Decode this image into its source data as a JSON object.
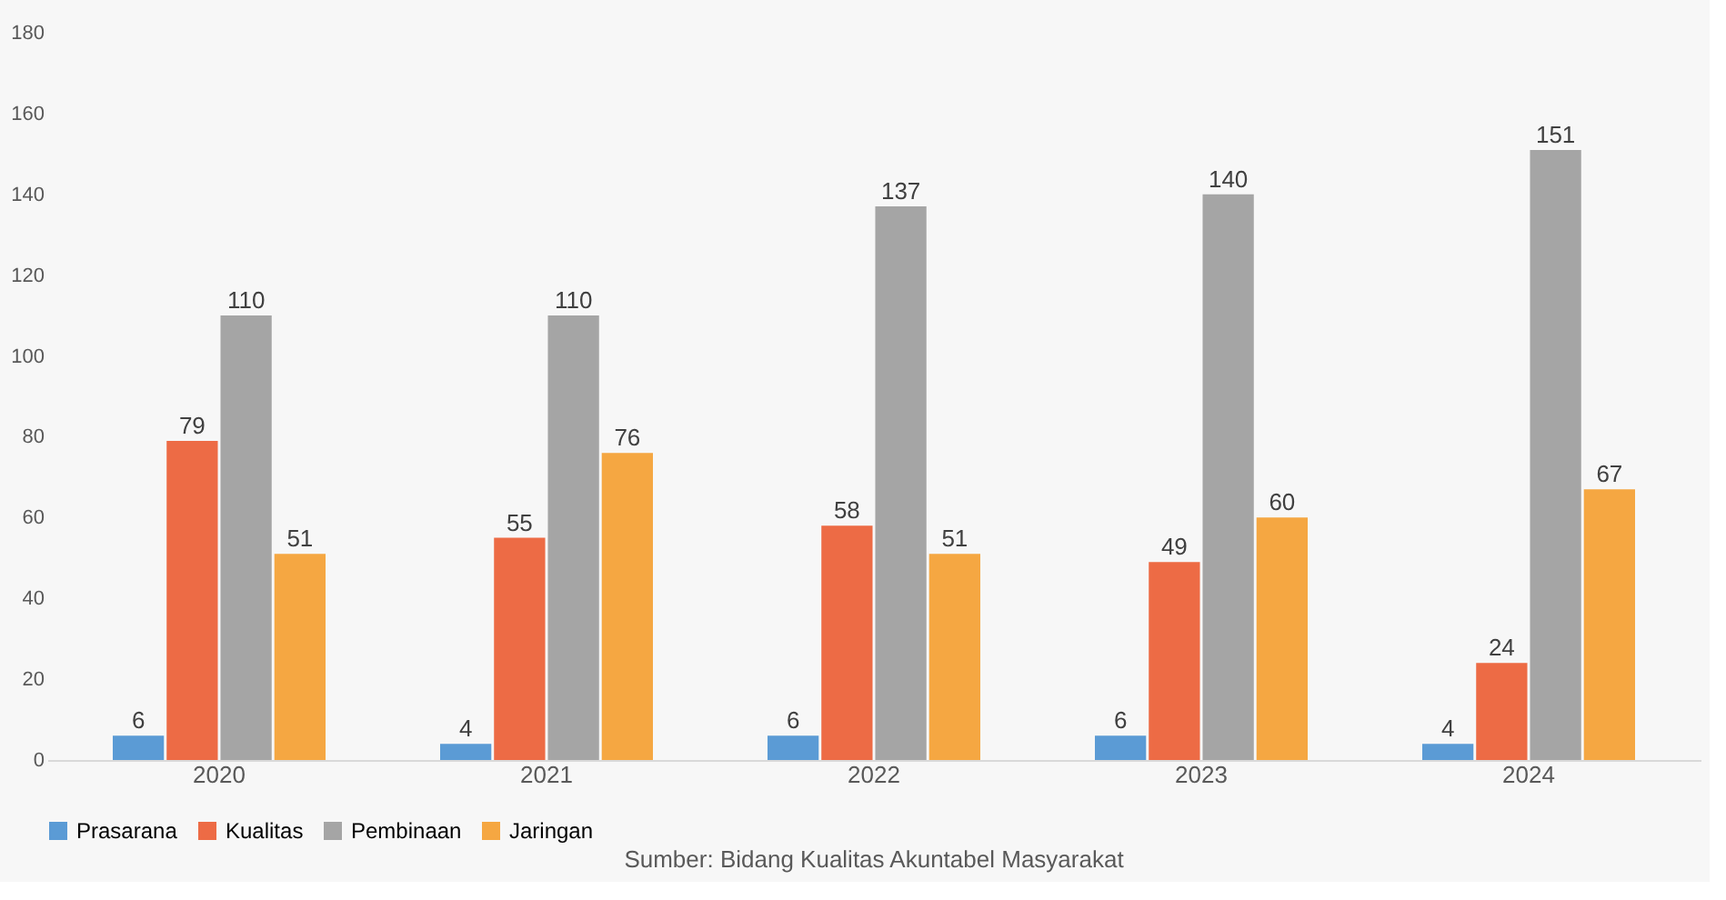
{
  "chart_data": {
    "type": "bar",
    "categories": [
      "2020",
      "2021",
      "2022",
      "2023",
      "2024"
    ],
    "series": [
      {
        "name": "Prasarana",
        "color": "#5b9bd5",
        "values": [
          6,
          4,
          6,
          6,
          4
        ]
      },
      {
        "name": "Kualitas",
        "color": "#ed6b45",
        "values": [
          79,
          55,
          58,
          49,
          24
        ]
      },
      {
        "name": "Pembinaan",
        "color": "#a5a5a5",
        "values": [
          110,
          110,
          137,
          140,
          151
        ]
      },
      {
        "name": "Jaringan",
        "color": "#f5a742",
        "values": [
          51,
          76,
          51,
          60,
          67
        ]
      }
    ],
    "ylim": [
      0,
      180
    ],
    "yticks": [
      0,
      20,
      40,
      60,
      80,
      100,
      120,
      140,
      160,
      180
    ],
    "grid": false,
    "legend": "bottom",
    "data_labels": true,
    "annotations": [
      "Sumber: Bidang Kualitas Akuntabel Masyarakat"
    ]
  }
}
